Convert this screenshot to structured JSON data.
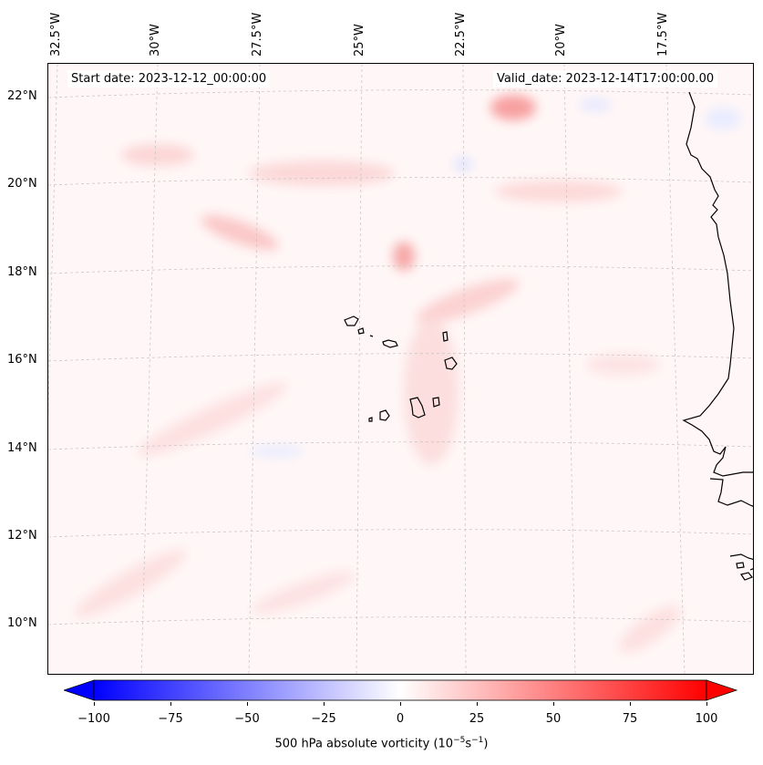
{
  "header": {
    "start_date": "Start date: 2023-12-12_00:00:00",
    "valid_date": "Valid_date: 2023-12-14T17:00:00.00"
  },
  "map": {
    "longitude_labels": [
      "32.5°W",
      "30°W",
      "27.5°W",
      "25°W",
      "22.5°W",
      "20°W",
      "17.5°W"
    ],
    "latitude_labels": [
      "22°N",
      "20°N",
      "18°N",
      "16°N",
      "14°N",
      "12°N",
      "10°N"
    ],
    "gridlines": "dashed",
    "coastline_color": "#000000",
    "field_colors": {
      "positive": "#ff0000",
      "negative": "#0000ff",
      "neutral": "#ffffff"
    }
  },
  "colorbar": {
    "ticks": [
      "−100",
      "−75",
      "−50",
      "−25",
      "0",
      "25",
      "50",
      "75",
      "100"
    ],
    "min": -100,
    "max": 100,
    "label_text": "500 hPa absolute vorticity (10",
    "label_exp1": "−5",
    "label_mid": "s",
    "label_exp2": "−1",
    "label_end": ")"
  }
}
